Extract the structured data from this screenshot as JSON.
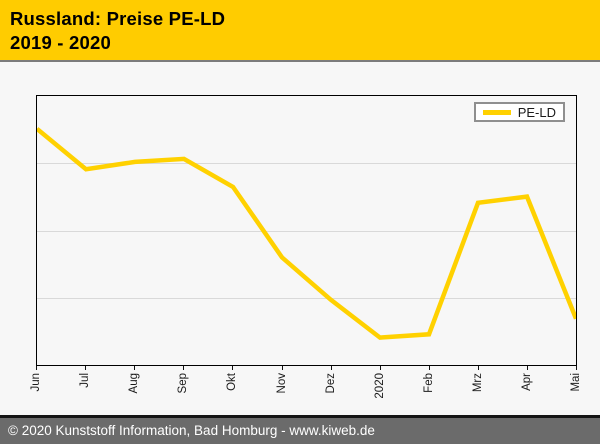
{
  "header": {
    "title_line1": "Russland: Preise PE-LD",
    "title_line2": "2019 - 2020",
    "background_color": "#FFCC00"
  },
  "chart_data": {
    "type": "line",
    "title": "Russland: Preise PE-LD 2019 - 2020",
    "categories": [
      "Jun",
      "Jul",
      "Aug",
      "Sep",
      "Okt",
      "Nov",
      "Dez",
      "2020",
      "Feb",
      "Mrz",
      "Apr",
      "Mai"
    ],
    "series": [
      {
        "name": "PE-LD",
        "color": "#FFD100",
        "values": [
          87.8,
          72.8,
          75.5,
          76.6,
          66.2,
          40.0,
          24.2,
          10.2,
          11.4,
          60.3,
          62.6,
          17.2
        ]
      }
    ],
    "xlabel": "",
    "ylabel": "",
    "ylim": [
      0,
      100
    ],
    "y_axis_labels_visible": false,
    "values_note": "no y-axis tick labels in source; values are relative 0-100 estimates read from pixel positions",
    "gridlines_y": [
      25,
      50,
      75
    ],
    "grid": "horizontal only",
    "x_tick_rotation": -90,
    "legend_position": "top-right"
  },
  "legend": {
    "label": "PE-LD"
  },
  "footer": {
    "text": "© 2020 Kunststoff Information, Bad Homburg - www.kiweb.de"
  }
}
